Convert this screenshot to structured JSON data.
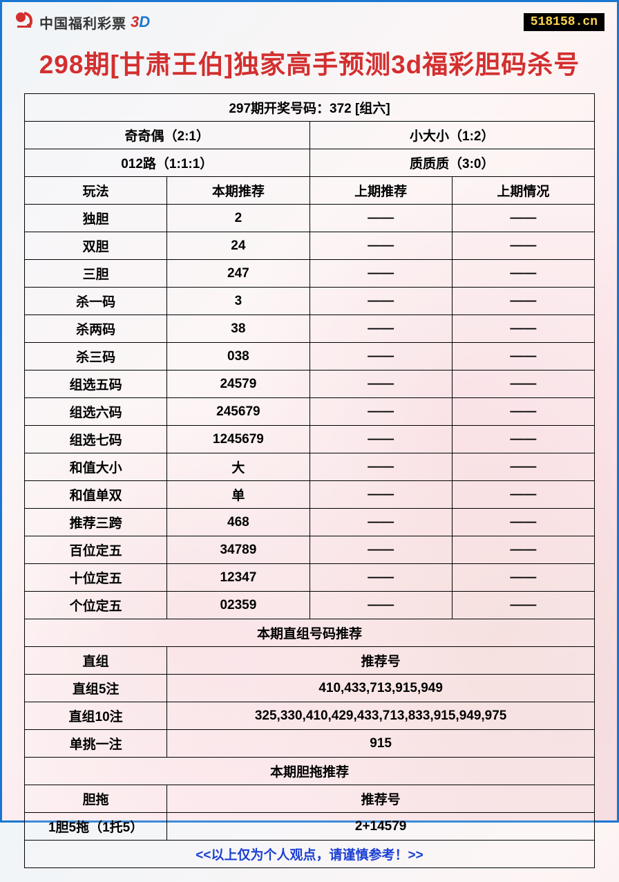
{
  "header": {
    "logo_text": "中国福利彩票",
    "logo_3d_3": "3",
    "logo_3d_d": "D",
    "site_badge": "518158.cn"
  },
  "title": "298期[甘肃王伯]独家高手预测3d福彩胆码杀号",
  "previous_draw": "297期开奖号码：372 [组六]",
  "stats_row1": {
    "left": "奇奇偶（2:1）",
    "right": "小大小（1:2）"
  },
  "stats_row2": {
    "left": "012路（1:1:1）",
    "right": "质质质（3:0）"
  },
  "columns": {
    "c1": "玩法",
    "c2": "本期推荐",
    "c3": "上期推荐",
    "c4": "上期情况"
  },
  "rows": [
    {
      "name": "独胆",
      "current": "2",
      "prev_rec": "——",
      "prev_res": "——"
    },
    {
      "name": "双胆",
      "current": "24",
      "prev_rec": "——",
      "prev_res": "——"
    },
    {
      "name": "三胆",
      "current": "247",
      "prev_rec": "——",
      "prev_res": "——"
    },
    {
      "name": "杀一码",
      "current": "3",
      "prev_rec": "——",
      "prev_res": "——"
    },
    {
      "name": "杀两码",
      "current": "38",
      "prev_rec": "——",
      "prev_res": "——"
    },
    {
      "name": "杀三码",
      "current": "038",
      "prev_rec": "——",
      "prev_res": "——"
    },
    {
      "name": "组选五码",
      "current": "24579",
      "prev_rec": "——",
      "prev_res": "——"
    },
    {
      "name": "组选六码",
      "current": "245679",
      "prev_rec": "——",
      "prev_res": "——"
    },
    {
      "name": "组选七码",
      "current": "1245679",
      "prev_rec": "——",
      "prev_res": "——"
    },
    {
      "name": "和值大小",
      "current": "大",
      "prev_rec": "——",
      "prev_res": "——"
    },
    {
      "name": "和值单双",
      "current": "单",
      "prev_rec": "——",
      "prev_res": "——"
    },
    {
      "name": "推荐三跨",
      "current": "468",
      "prev_rec": "——",
      "prev_res": "——"
    },
    {
      "name": "百位定五",
      "current": "34789",
      "prev_rec": "——",
      "prev_res": "——"
    },
    {
      "name": "十位定五",
      "current": "12347",
      "prev_rec": "——",
      "prev_res": "——"
    },
    {
      "name": "个位定五",
      "current": "02359",
      "prev_rec": "——",
      "prev_res": "——"
    }
  ],
  "section2_title": "本期直组号码推荐",
  "section2_header": {
    "left": "直组",
    "right": "推荐号"
  },
  "section2_rows": [
    {
      "name": "直组5注",
      "value": "410,433,713,915,949"
    },
    {
      "name": "直组10注",
      "value": "325,330,410,429,433,713,833,915,949,975"
    },
    {
      "name": "单挑一注",
      "value": "915"
    }
  ],
  "section3_title": "本期胆拖推荐",
  "section3_header": {
    "left": "胆拖",
    "right": "推荐号"
  },
  "section3_rows": [
    {
      "name": "1胆5拖（1托5）",
      "value": "2+14579"
    }
  ],
  "footer_note": "<<以上仅为个人观点，请谨慎参考！>>",
  "dash": "——"
}
